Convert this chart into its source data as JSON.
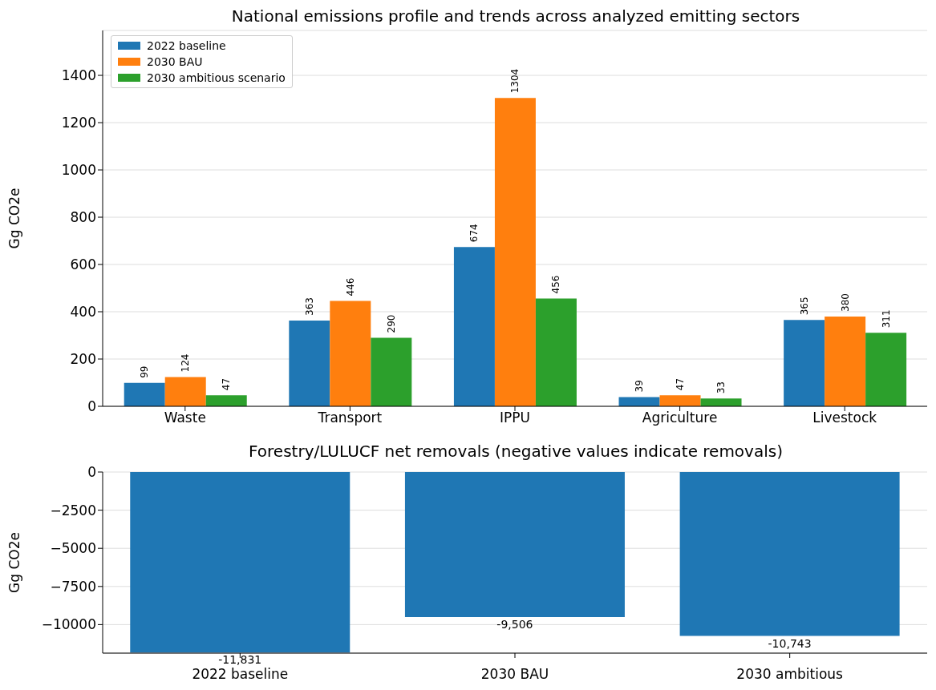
{
  "chart_data": [
    {
      "type": "bar",
      "title": "National emissions profile and trends across analyzed emitting sectors",
      "ylabel": "Gg CO2e",
      "categories": [
        "Waste",
        "Transport",
        "IPPU",
        "Agriculture",
        "Livestock"
      ],
      "series": [
        {
          "name": "2022 baseline",
          "color": "#1f77b4",
          "values": [
            99,
            363,
            674,
            39,
            365
          ]
        },
        {
          "name": "2030 BAU",
          "color": "#ff7f0e",
          "values": [
            124,
            446,
            1304,
            47,
            380
          ]
        },
        {
          "name": "2030 ambitious scenario",
          "color": "#2ca02c",
          "values": [
            47,
            290,
            456,
            33,
            311
          ]
        }
      ],
      "ylim": [
        0,
        1590
      ],
      "yticks": [
        0,
        200,
        400,
        600,
        800,
        1000,
        1200,
        1400
      ],
      "grid": "y",
      "legend": "top left",
      "data_labels": true
    },
    {
      "type": "bar",
      "title": "Forestry/LULUCF net removals (negative values indicate removals)",
      "ylabel": "Gg CO2e",
      "categories": [
        "2022 baseline",
        "2030 BAU",
        "2030 ambitious"
      ],
      "values": [
        -11831,
        -9506,
        -10743
      ],
      "color": "#1f77b4",
      "value_labels": [
        "-11,831",
        "-9,506",
        "-10,743"
      ],
      "ylim": [
        -11870,
        0
      ],
      "yticks": [
        {
          "value": -10000,
          "label": "−10000"
        },
        {
          "value": -7500,
          "label": "−7500"
        },
        {
          "value": -5000,
          "label": "−5000"
        },
        {
          "value": -2500,
          "label": "−2500"
        },
        0
      ],
      "grid": "y"
    }
  ]
}
